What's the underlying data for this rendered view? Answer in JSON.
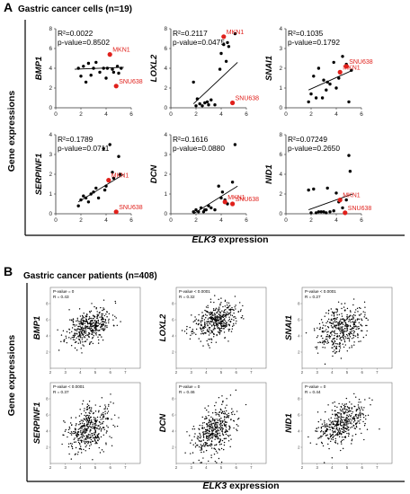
{
  "panel_a": {
    "letter": "A",
    "title": "Gastric cancer cells  (n=19)",
    "y_label": "Gene expressions",
    "x_label_italic": "ELK3",
    "x_label_rest": " expression"
  },
  "panel_b": {
    "letter": "B",
    "title": "Gastric cancer patients  (n=408)",
    "y_label": "Gene expressions",
    "x_label_italic": "ELK3",
    "x_label_rest": " expression"
  },
  "colors": {
    "highlight": "#e0201b",
    "points": "#000000"
  },
  "chart_data": [
    {
      "type": "scatter",
      "panel": "A",
      "ylabel": "BMP1",
      "stat_r2": "R²=0.0022",
      "stat_p": "p-value=0.8502",
      "xlim": [
        0,
        6
      ],
      "ylim": [
        0,
        8
      ],
      "xticks": [
        0,
        2,
        4,
        6
      ],
      "yticks": [
        0,
        2,
        4,
        6,
        8
      ],
      "x": [
        1.8,
        2.0,
        2.2,
        2.4,
        2.6,
        2.8,
        3.0,
        3.2,
        3.5,
        3.8,
        4.0,
        4.1,
        4.5,
        4.6,
        4.9,
        5.0,
        5.2
      ],
      "y": [
        4.0,
        3.2,
        4.2,
        2.6,
        4.5,
        3.3,
        4.0,
        4.6,
        3.6,
        4.0,
        3.0,
        4.0,
        3.9,
        3.6,
        4.2,
        3.5,
        4.0
      ],
      "trend": [
        [
          1.5,
          3.9
        ],
        [
          5.4,
          4.1
        ]
      ],
      "highlighted": [
        {
          "label": "MKN1",
          "x": 4.3,
          "y": 5.4
        },
        {
          "label": "SNU638",
          "x": 4.8,
          "y": 2.2
        }
      ]
    },
    {
      "type": "scatter",
      "panel": "A",
      "ylabel": "LOXL2",
      "stat_r2": "R²=0.2117",
      "stat_p": "p-value=0.0475",
      "xlim": [
        0,
        6
      ],
      "ylim": [
        0,
        8
      ],
      "xticks": [
        0,
        2,
        4,
        6
      ],
      "yticks": [
        0,
        2,
        4,
        6,
        8
      ],
      "x": [
        1.8,
        2.0,
        2.1,
        2.3,
        2.5,
        2.7,
        3.0,
        3.2,
        3.5,
        3.9,
        4.0,
        4.2,
        4.4,
        4.5,
        4.6,
        5.1,
        2.9
      ],
      "y": [
        2.6,
        0.2,
        0.9,
        0.4,
        0.2,
        0.5,
        0.3,
        0.8,
        0.3,
        3.9,
        5.5,
        6.4,
        4.7,
        6.6,
        6.2,
        7.5,
        0.6
      ],
      "trend": [
        [
          1.8,
          0.4
        ],
        [
          5.3,
          4.6
        ]
      ],
      "highlighted": [
        {
          "label": "MKN1",
          "x": 4.2,
          "y": 7.2
        },
        {
          "label": "SNU638",
          "x": 4.9,
          "y": 0.5
        }
      ]
    },
    {
      "type": "scatter",
      "panel": "A",
      "ylabel": "SNAI1",
      "stat_r2": "R²=0.1035",
      "stat_p": "p-value=0.1792",
      "xlim": [
        0,
        6
      ],
      "ylim": [
        0,
        4
      ],
      "xticks": [
        0,
        2,
        4,
        6
      ],
      "yticks": [
        0,
        1,
        2,
        3,
        4
      ],
      "x": [
        1.8,
        2.0,
        2.2,
        2.4,
        2.6,
        2.9,
        3.0,
        3.2,
        3.3,
        3.5,
        3.8,
        4.0,
        4.2,
        4.5,
        4.8,
        5.0,
        5.2
      ],
      "y": [
        0.3,
        0.7,
        1.6,
        0.5,
        2.0,
        0.5,
        1.4,
        0.9,
        1.3,
        1.2,
        2.3,
        1.0,
        1.5,
        2.6,
        2.2,
        0.3,
        1.9
      ],
      "trend": [
        [
          1.8,
          0.9
        ],
        [
          5.3,
          1.9
        ]
      ],
      "highlighted": [
        {
          "label": "MKN1",
          "x": 4.3,
          "y": 1.8
        },
        {
          "label": "SNU638",
          "x": 4.8,
          "y": 2.1
        }
      ]
    },
    {
      "type": "scatter",
      "panel": "A",
      "ylabel": "SERPINF1",
      "stat_r2": "R²=0.1789",
      "stat_p": "p-value=0.0711",
      "xlim": [
        0,
        6
      ],
      "ylim": [
        0,
        4
      ],
      "xticks": [
        0,
        2,
        4,
        6
      ],
      "yticks": [
        0,
        1,
        2,
        3,
        4
      ],
      "x": [
        1.8,
        2.0,
        2.2,
        2.4,
        2.6,
        2.8,
        3.0,
        3.2,
        3.4,
        3.8,
        3.9,
        4.0,
        4.3,
        4.5,
        4.6,
        5.0,
        5.1
      ],
      "y": [
        0.4,
        0.7,
        0.9,
        0.8,
        0.6,
        1.0,
        1.1,
        1.3,
        0.8,
        3.3,
        1.2,
        1.4,
        3.5,
        2.1,
        1.8,
        2.9,
        2.0
      ],
      "trend": [
        [
          1.8,
          0.6
        ],
        [
          5.4,
          2.0
        ]
      ],
      "highlighted": [
        {
          "label": "MKN1",
          "x": 4.2,
          "y": 1.7
        },
        {
          "label": "SNU638",
          "x": 4.8,
          "y": 0.1
        }
      ]
    },
    {
      "type": "scatter",
      "panel": "A",
      "ylabel": "DCN",
      "stat_r2": "R²=0.1616",
      "stat_p": "p-value=0.0880",
      "xlim": [
        0,
        6
      ],
      "ylim": [
        0,
        4
      ],
      "xticks": [
        0,
        2,
        4,
        6
      ],
      "yticks": [
        0,
        1,
        2,
        3,
        4
      ],
      "x": [
        1.8,
        2.0,
        2.2,
        2.4,
        2.6,
        2.8,
        3.0,
        3.2,
        3.5,
        3.8,
        4.0,
        4.1,
        4.3,
        4.5,
        4.9,
        5.1,
        2.7
      ],
      "y": [
        0.1,
        0.2,
        0.1,
        0.3,
        0.1,
        0.2,
        0.4,
        0.3,
        0.2,
        1.4,
        0.8,
        1.1,
        0.7,
        0.5,
        1.6,
        3.5,
        0.2
      ],
      "trend": [
        [
          1.8,
          0.0
        ],
        [
          5.3,
          1.4
        ]
      ],
      "highlighted": [
        {
          "label": "MKN1",
          "x": 4.3,
          "y": 0.6
        },
        {
          "label": "SNU638",
          "x": 4.9,
          "y": 0.5
        }
      ]
    },
    {
      "type": "scatter",
      "panel": "A",
      "ylabel": "NID1",
      "stat_r2": "R²=0.07249",
      "stat_p": "p-value=0.2650",
      "xlim": [
        0,
        6
      ],
      "ylim": [
        0,
        8
      ],
      "xticks": [
        0,
        2,
        4,
        6
      ],
      "yticks": [
        0,
        2,
        4,
        6,
        8
      ],
      "x": [
        1.8,
        2.0,
        2.2,
        2.4,
        2.6,
        2.8,
        3.0,
        3.2,
        3.5,
        3.8,
        4.0,
        4.2,
        4.5,
        4.8,
        5.0,
        5.1,
        3.3
      ],
      "y": [
        2.4,
        0.1,
        2.5,
        0.1,
        0.2,
        0.2,
        0.2,
        0.1,
        0.2,
        0.3,
        2.1,
        1.2,
        0.6,
        1.4,
        5.9,
        4.3,
        2.6
      ],
      "trend": [
        [
          1.8,
          0.4
        ],
        [
          5.3,
          2.0
        ]
      ],
      "highlighted": [
        {
          "label": "MKN1",
          "x": 4.3,
          "y": 1.4
        },
        {
          "label": "SNU638",
          "x": 4.7,
          "y": 0.1
        }
      ]
    },
    {
      "type": "scatter",
      "panel": "B",
      "ylabel": "BMP1",
      "stat_p": "P-value = 0",
      "stat_r": "R = 0.43",
      "n": 408,
      "xlim": [
        2,
        8
      ],
      "ylim": [
        0,
        10
      ],
      "xticks": [
        2,
        3,
        4,
        5,
        6,
        7
      ],
      "yticks": [
        2,
        4,
        6,
        8
      ],
      "center": [
        4.6,
        5.2
      ],
      "spread": [
        0.75,
        1.1
      ],
      "r": 0.43,
      "seed": 11
    },
    {
      "type": "scatter",
      "panel": "B",
      "ylabel": "LOXL2",
      "stat_p": "P-value < 0.0001",
      "stat_r": "R = 0.32",
      "n": 408,
      "xlim": [
        2,
        8
      ],
      "ylim": [
        0,
        10
      ],
      "xticks": [
        2,
        3,
        4,
        5,
        6,
        7
      ],
      "yticks": [
        2,
        4,
        6,
        8
      ],
      "center": [
        4.6,
        5.8
      ],
      "spread": [
        0.75,
        1.1
      ],
      "r": 0.32,
      "seed": 23
    },
    {
      "type": "scatter",
      "panel": "B",
      "ylabel": "SNAI1",
      "stat_p": "P-value < 0.0001",
      "stat_r": "R = 0.27",
      "n": 408,
      "xlim": [
        2,
        8
      ],
      "ylim": [
        0,
        10
      ],
      "xticks": [
        2,
        3,
        4,
        5,
        6,
        7
      ],
      "yticks": [
        2,
        4,
        6,
        8
      ],
      "center": [
        4.6,
        5.0
      ],
      "spread": [
        0.75,
        1.4
      ],
      "r": 0.27,
      "seed": 37
    },
    {
      "type": "scatter",
      "panel": "B",
      "ylabel": "SERPINF1",
      "stat_p": "P-value < 0.0001",
      "stat_r": "R = 0.37",
      "n": 408,
      "xlim": [
        2,
        8
      ],
      "ylim": [
        0,
        10
      ],
      "xticks": [
        2,
        3,
        4,
        5,
        6,
        7
      ],
      "yticks": [
        2,
        4,
        6,
        8
      ],
      "center": [
        4.6,
        4.3
      ],
      "spread": [
        0.75,
        1.5
      ],
      "r": 0.37,
      "seed": 41
    },
    {
      "type": "scatter",
      "panel": "B",
      "ylabel": "DCN",
      "stat_p": "P-value = 0",
      "stat_r": "R = 0.46",
      "n": 408,
      "xlim": [
        2,
        8
      ],
      "ylim": [
        0,
        10
      ],
      "xticks": [
        2,
        3,
        4,
        5,
        6,
        7
      ],
      "yticks": [
        2,
        4,
        6,
        8
      ],
      "center": [
        4.6,
        4.0
      ],
      "spread": [
        0.75,
        1.6
      ],
      "r": 0.46,
      "seed": 53
    },
    {
      "type": "scatter",
      "panel": "B",
      "ylabel": "NID1",
      "stat_p": "P-value = 0",
      "stat_r": "R = 0.44",
      "n": 408,
      "xlim": [
        2,
        8
      ],
      "ylim": [
        0,
        10
      ],
      "xticks": [
        2,
        3,
        4,
        5,
        6,
        7
      ],
      "yticks": [
        2,
        4,
        6,
        8
      ],
      "center": [
        4.6,
        4.8
      ],
      "spread": [
        0.75,
        1.3
      ],
      "r": 0.44,
      "seed": 67
    }
  ]
}
